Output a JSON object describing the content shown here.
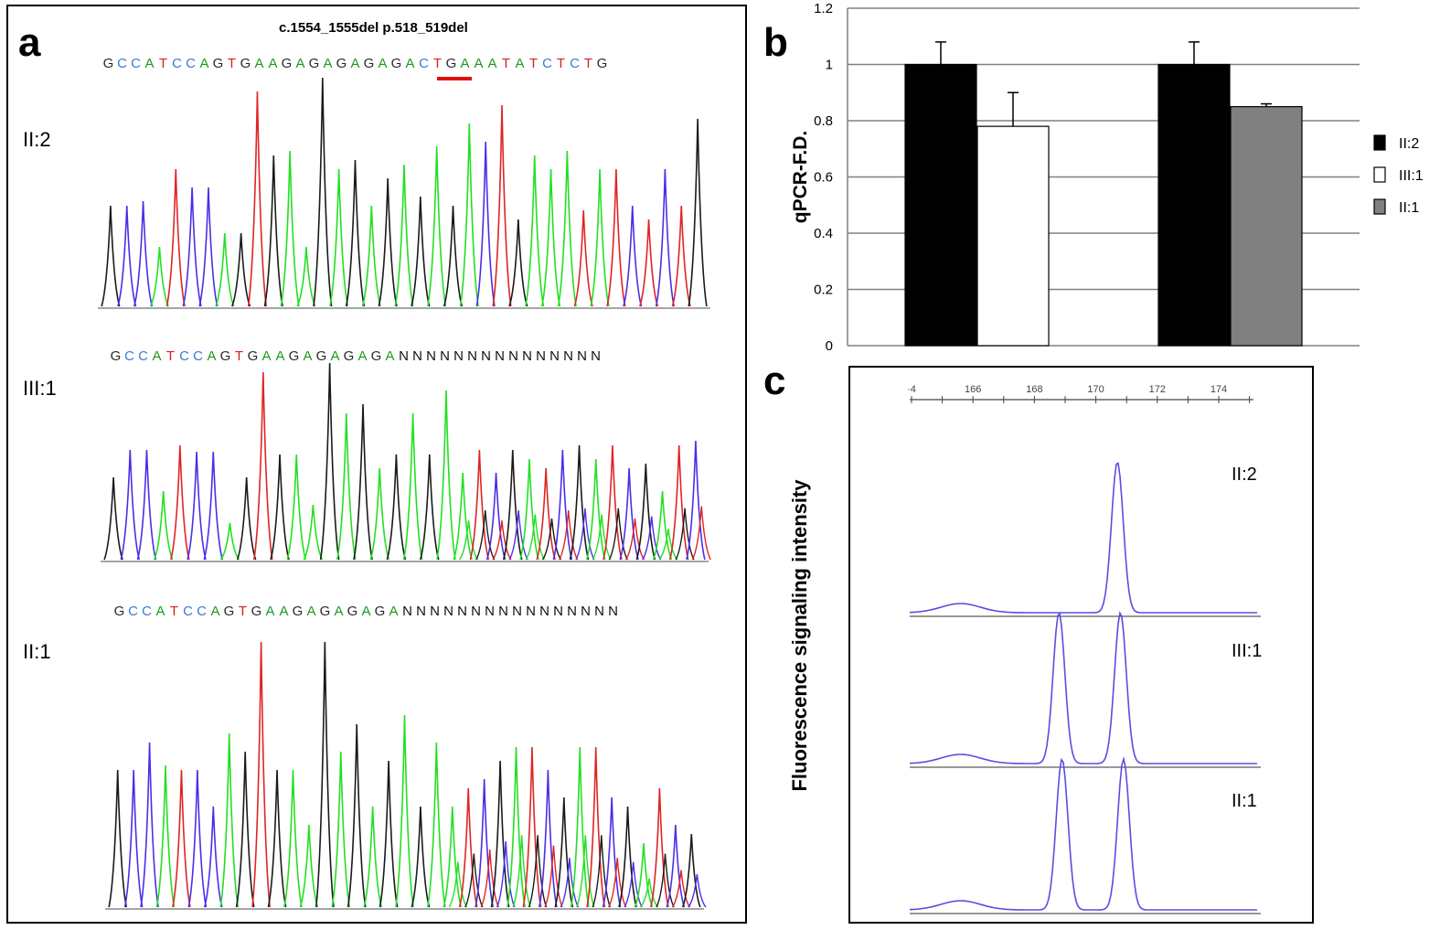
{
  "panel_a": {
    "letter": "a",
    "mutation_title": "c.1554_1555del p.518_519del",
    "base_colors": {
      "G": "#2a2a2a",
      "C": "#3a7bd5",
      "A": "#1a9a1a",
      "T": "#d42020",
      "N": "#111111"
    },
    "highlight_color": "#e01010",
    "tracks": [
      {
        "label": "II:2",
        "sequence": "GCCATCCAGTGAAGAGAGAGAGACTGAAATATCTCTG"
      },
      {
        "label": "III:1",
        "sequence": "GCCATCCAGTGAAGAGAGAGANNNNNNNNNNNNNNN"
      },
      {
        "label": "II:1",
        "sequence": "GCCATCCAGTGAAGAGAGAGANNNNNNNNNNNNNNNN"
      }
    ],
    "trace_colors": {
      "black": "#1a1a1a",
      "blue": "#4b2ee8",
      "red": "#e02424",
      "green": "#22e022"
    }
  },
  "chart_data": [
    {
      "type": "bar",
      "panel": "b",
      "ylabel": "qPCR-F.D.",
      "ylim": [
        0,
        1.2
      ],
      "yticks": [
        "0",
        "0.2",
        "0.4",
        "0.6",
        "0.8",
        "1",
        "1.2"
      ],
      "groups": [
        {
          "bars": [
            {
              "series": "II:2",
              "value": 1.0,
              "error": 0.08
            },
            {
              "series": "III:1",
              "value": 0.78,
              "error": 0.12
            }
          ]
        },
        {
          "bars": [
            {
              "series": "II:2",
              "value": 1.0,
              "error": 0.08
            },
            {
              "series": "II:1",
              "value": 0.85,
              "error": 0.01
            }
          ]
        }
      ],
      "legend": [
        {
          "name": "II:2",
          "color": "#000000"
        },
        {
          "name": "III:1",
          "color": "#ffffff"
        },
        {
          "name": "II:1",
          "color": "#808080"
        }
      ],
      "legend_position": "right"
    },
    {
      "type": "line",
      "panel": "c",
      "ylabel": "Fluorescence signaling intensity",
      "x_ticks": [
        "·4",
        "166",
        "168",
        "170",
        "172",
        "174"
      ],
      "line_color": "#5a4de0",
      "traces": [
        {
          "label": "II:2",
          "peaks": [
            170.7
          ]
        },
        {
          "label": "III:1",
          "peaks": [
            168.8,
            170.8
          ]
        },
        {
          "label": "II:1",
          "peaks": [
            168.9,
            170.9
          ]
        }
      ]
    }
  ]
}
